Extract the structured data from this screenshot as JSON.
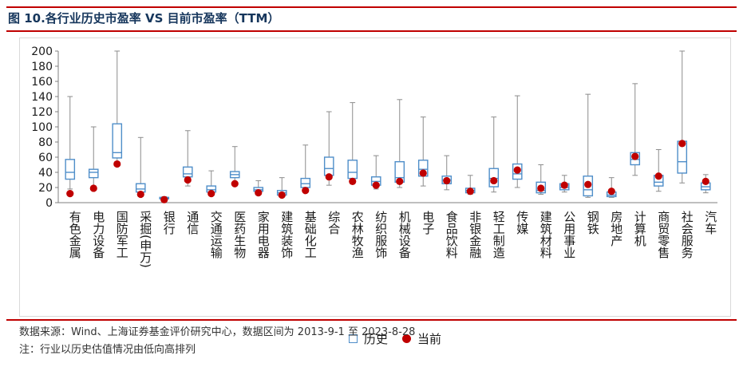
{
  "header": {
    "title": "图 10.各行业历史市盈率 VS 目前市盈率（TTM）"
  },
  "footer": {
    "source": "数据来源：Wind、上海证券基金评价研究中心，数据区间为 2013-9-1 至 2023-8-28",
    "note": "注：行业以历史估值情况由低向高排列"
  },
  "colors": {
    "box": "#4f8ec9",
    "whisker": "#8c8c8c",
    "current_dot": "#c00000",
    "rule": "#c00000",
    "title": "#16365c"
  },
  "chart_data": {
    "type": "boxplot",
    "ylim": [
      0,
      200
    ],
    "yticks": [
      0,
      20,
      40,
      60,
      80,
      100,
      120,
      140,
      160,
      180,
      200
    ],
    "grid": false,
    "legend_position": "bottom",
    "legend": {
      "box_label": "历史",
      "dot_label": "当前"
    },
    "categories": [
      "有色金属",
      "电力设备",
      "国防军工",
      "采掘(申万)",
      "银行",
      "通信",
      "交通运输",
      "医药生物",
      "家用电器",
      "建筑装饰",
      "基础化工",
      "综合",
      "农林牧渔",
      "纺织服饰",
      "机械设备",
      "电子",
      "食品饮料",
      "非银金融",
      "轻工制造",
      "传媒",
      "建筑材料",
      "公用事业",
      "钢铁",
      "房地产",
      "计算机",
      "商贸零售",
      "社会服务",
      "汽车"
    ],
    "series": [
      {
        "name": "历史",
        "stats": [
          {
            "min": 18,
            "q1": 31,
            "median": 40,
            "q3": 57,
            "max": 140
          },
          {
            "min": 22,
            "q1": 33,
            "median": 40,
            "q3": 44,
            "max": 100
          },
          {
            "min": 48,
            "q1": 59,
            "median": 66,
            "q3": 104,
            "max": 200
          },
          {
            "min": 8,
            "q1": 14,
            "median": 18,
            "q3": 25,
            "max": 86
          },
          {
            "min": 4,
            "q1": 5,
            "median": 6,
            "q3": 7,
            "max": 8
          },
          {
            "min": 22,
            "q1": 34,
            "median": 38,
            "q3": 47,
            "max": 95
          },
          {
            "min": 11,
            "q1": 14,
            "median": 17,
            "q3": 22,
            "max": 42
          },
          {
            "min": 26,
            "q1": 33,
            "median": 37,
            "q3": 41,
            "max": 74
          },
          {
            "min": 12,
            "q1": 15,
            "median": 17,
            "q3": 20,
            "max": 29
          },
          {
            "min": 8,
            "q1": 10,
            "median": 13,
            "q3": 16,
            "max": 33
          },
          {
            "min": 16,
            "q1": 20,
            "median": 25,
            "q3": 32,
            "max": 76
          },
          {
            "min": 23,
            "q1": 36,
            "median": 45,
            "q3": 60,
            "max": 120
          },
          {
            "min": 25,
            "q1": 32,
            "median": 40,
            "q3": 56,
            "max": 132
          },
          {
            "min": 18,
            "q1": 23,
            "median": 28,
            "q3": 34,
            "max": 62
          },
          {
            "min": 20,
            "q1": 27,
            "median": 33,
            "q3": 54,
            "max": 136
          },
          {
            "min": 22,
            "q1": 35,
            "median": 44,
            "q3": 56,
            "max": 113
          },
          {
            "min": 17,
            "q1": 25,
            "median": 30,
            "q3": 35,
            "max": 62
          },
          {
            "min": 11,
            "q1": 13,
            "median": 16,
            "q3": 19,
            "max": 36
          },
          {
            "min": 14,
            "q1": 21,
            "median": 32,
            "q3": 45,
            "max": 113
          },
          {
            "min": 20,
            "q1": 31,
            "median": 38,
            "q3": 51,
            "max": 141
          },
          {
            "min": 11,
            "q1": 13,
            "median": 16,
            "q3": 27,
            "max": 50
          },
          {
            "min": 14,
            "q1": 17,
            "median": 20,
            "q3": 25,
            "max": 36
          },
          {
            "min": 7,
            "q1": 9,
            "median": 17,
            "q3": 35,
            "max": 143
          },
          {
            "min": 7,
            "q1": 8,
            "median": 10,
            "q3": 14,
            "max": 33
          },
          {
            "min": 36,
            "q1": 50,
            "median": 57,
            "q3": 66,
            "max": 157
          },
          {
            "min": 15,
            "q1": 22,
            "median": 27,
            "q3": 36,
            "max": 70
          },
          {
            "min": 26,
            "q1": 39,
            "median": 54,
            "q3": 81,
            "max": 200
          },
          {
            "min": 13,
            "q1": 17,
            "median": 21,
            "q3": 26,
            "max": 37
          }
        ]
      },
      {
        "name": "当前",
        "values": [
          12,
          19,
          51,
          11,
          4,
          30,
          12,
          25,
          13,
          10,
          16,
          34,
          28,
          23,
          28,
          39,
          29,
          15,
          29,
          43,
          19,
          23,
          24,
          15,
          61,
          35,
          78,
          28
        ]
      }
    ]
  }
}
